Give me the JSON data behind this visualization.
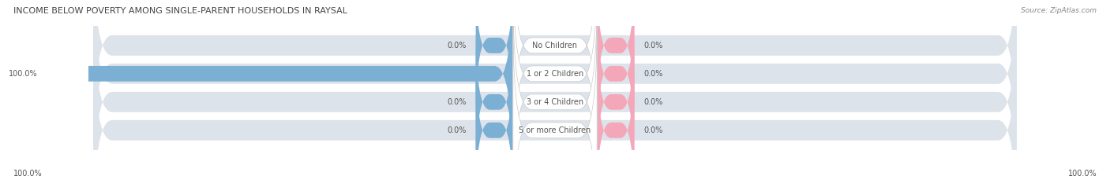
{
  "title": "INCOME BELOW POVERTY AMONG SINGLE-PARENT HOUSEHOLDS IN RAYSAL",
  "source": "Source: ZipAtlas.com",
  "categories": [
    "No Children",
    "1 or 2 Children",
    "3 or 4 Children",
    "5 or more Children"
  ],
  "single_father": [
    0.0,
    100.0,
    0.0,
    0.0
  ],
  "single_mother": [
    0.0,
    0.0,
    0.0,
    0.0
  ],
  "father_color": "#7bafd4",
  "mother_color": "#f4a7b9",
  "bar_bg_color": "#dde3ea",
  "title_color": "#444444",
  "text_color": "#555555",
  "axis_label_left": "100.0%",
  "axis_label_right": "100.0%",
  "figsize": [
    14.06,
    2.33
  ],
  "dpi": 100
}
